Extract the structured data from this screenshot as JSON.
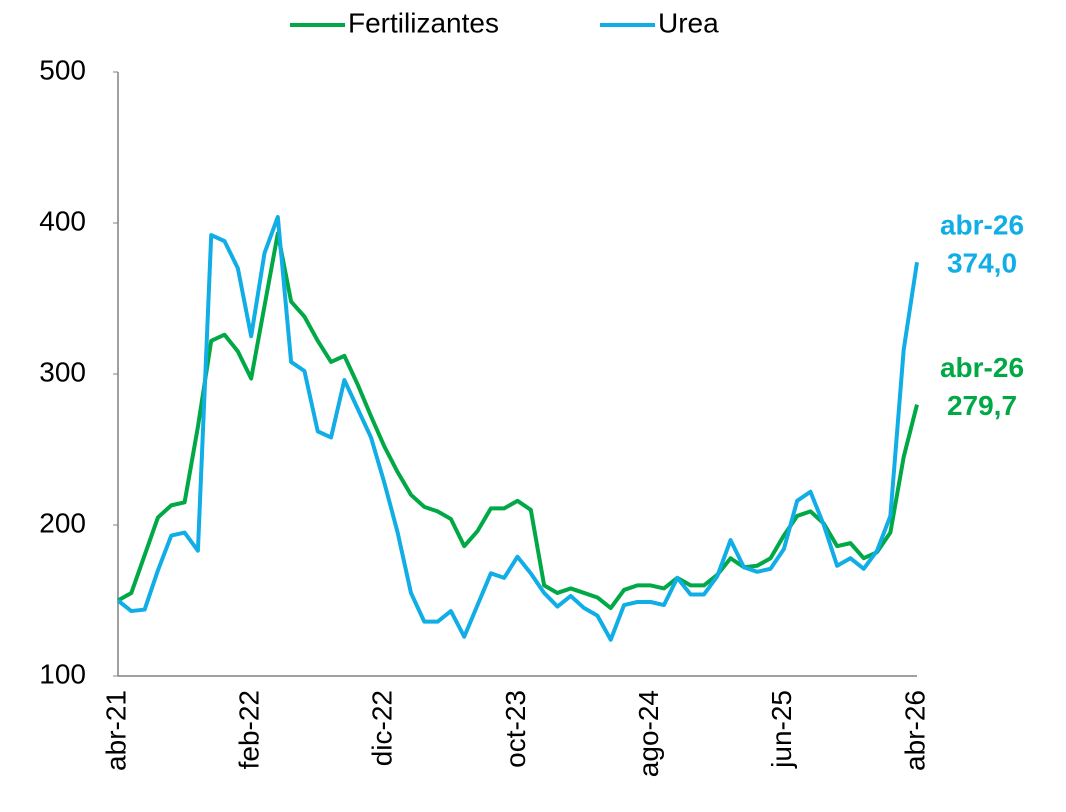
{
  "chart_data": {
    "type": "line",
    "categories": [
      "abr-21",
      null,
      null,
      null,
      null,
      null,
      null,
      null,
      null,
      null,
      "feb-22",
      null,
      null,
      null,
      null,
      null,
      null,
      null,
      null,
      null,
      "dic-22",
      null,
      null,
      null,
      null,
      null,
      null,
      null,
      null,
      null,
      "oct-23",
      null,
      null,
      null,
      null,
      null,
      null,
      null,
      null,
      null,
      "ago-24",
      null,
      null,
      null,
      null,
      null,
      null,
      null,
      null,
      null,
      "jun-25",
      null,
      null,
      null,
      null,
      null,
      null,
      null,
      null,
      null,
      "abr-26"
    ],
    "series": [
      {
        "name": "Fertilizantes",
        "color": "#00a846",
        "value_label": "279,7",
        "values": [
          150,
          155,
          180,
          205,
          213,
          215,
          265,
          322,
          326,
          315,
          297,
          345,
          393,
          348,
          338,
          322,
          308,
          312,
          293,
          272,
          252,
          235,
          220,
          212,
          209,
          204,
          186,
          196,
          211,
          211,
          216,
          210,
          160,
          155,
          158,
          155,
          152,
          145,
          157,
          160,
          160,
          158,
          165,
          160,
          160,
          167,
          178,
          172,
          173,
          178,
          193,
          206,
          209,
          201,
          186,
          188,
          178,
          182,
          195,
          245,
          279.7
        ]
      },
      {
        "name": "Urea",
        "color": "#10ade6",
        "value_label": "374,0",
        "values": [
          150,
          143,
          144,
          170,
          193,
          195,
          183,
          392,
          388,
          370,
          325,
          380,
          404,
          308,
          302,
          262,
          258,
          296,
          277,
          258,
          228,
          195,
          155,
          136,
          136,
          143,
          126,
          147,
          168,
          165,
          179,
          168,
          155,
          146,
          153,
          145,
          140,
          124,
          147,
          149,
          149,
          147,
          165,
          154,
          154,
          166,
          190,
          172,
          169,
          171,
          184,
          216,
          222,
          200,
          173,
          178,
          171,
          183,
          206,
          316,
          374
        ]
      }
    ],
    "ylim": [
      100,
      500
    ],
    "yticks": [
      100,
      200,
      300,
      400,
      500
    ],
    "grid": false
  }
}
